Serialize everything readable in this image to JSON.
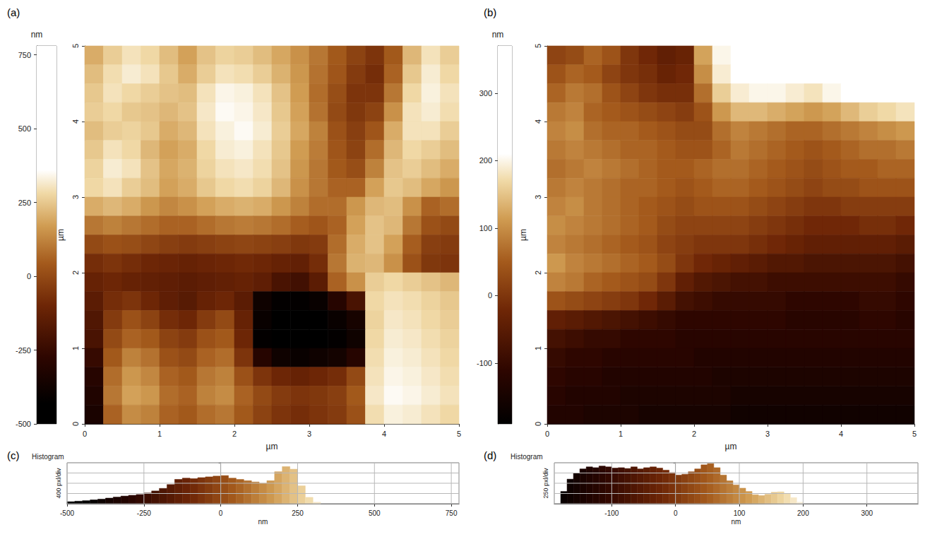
{
  "chart_data": [
    {
      "type": "heatmap",
      "title": "(a)",
      "x_label": "µm",
      "y_label": "µm",
      "xlim": [
        0,
        5
      ],
      "xticks": [
        0,
        1,
        2,
        3,
        4,
        5
      ],
      "ylim": [
        0,
        5
      ],
      "yticks": [
        0,
        1,
        2,
        3,
        4,
        5
      ],
      "colorbar_label": "nm",
      "colorbar_lim": [
        -500,
        780
      ],
      "colorbar_ticks": [
        -500,
        -250,
        0,
        250,
        500,
        750
      ],
      "colorbar_range": [
        -430,
        360
      ],
      "cells": [
        [
          200,
          260,
          300,
          280,
          230,
          180,
          240,
          270,
          260,
          230,
          190,
          150,
          100,
          40,
          -20,
          -60,
          40,
          220,
          300,
          260
        ],
        [
          230,
          290,
          320,
          300,
          250,
          200,
          260,
          300,
          290,
          260,
          210,
          160,
          90,
          30,
          -40,
          -80,
          60,
          250,
          320,
          280
        ],
        [
          250,
          300,
          280,
          260,
          240,
          230,
          300,
          340,
          330,
          300,
          240,
          170,
          80,
          10,
          -60,
          -60,
          100,
          280,
          330,
          300
        ],
        [
          260,
          280,
          250,
          240,
          220,
          240,
          310,
          350,
          340,
          310,
          250,
          180,
          90,
          0,
          -50,
          -20,
          150,
          300,
          320,
          290
        ],
        [
          230,
          260,
          270,
          250,
          200,
          220,
          300,
          330,
          350,
          320,
          260,
          190,
          120,
          20,
          -30,
          30,
          200,
          300,
          300,
          260
        ],
        [
          250,
          300,
          280,
          220,
          180,
          200,
          280,
          320,
          330,
          300,
          250,
          170,
          110,
          30,
          -20,
          80,
          220,
          280,
          260,
          230
        ],
        [
          270,
          320,
          300,
          240,
          190,
          210,
          270,
          300,
          310,
          290,
          240,
          160,
          100,
          40,
          10,
          120,
          240,
          260,
          230,
          200
        ],
        [
          280,
          300,
          260,
          230,
          180,
          200,
          250,
          280,
          290,
          270,
          220,
          150,
          100,
          60,
          60,
          180,
          250,
          230,
          190,
          160
        ],
        [
          200,
          220,
          200,
          160,
          130,
          150,
          180,
          200,
          210,
          200,
          160,
          120,
          80,
          80,
          160,
          220,
          230,
          150,
          60,
          80
        ],
        [
          100,
          120,
          100,
          80,
          60,
          60,
          80,
          100,
          110,
          100,
          80,
          50,
          30,
          60,
          180,
          240,
          220,
          100,
          20,
          0
        ],
        [
          0,
          20,
          10,
          -10,
          -30,
          -40,
          -30,
          -20,
          -10,
          -20,
          -30,
          -50,
          -40,
          80,
          200,
          240,
          180,
          50,
          -30,
          -40
        ],
        [
          -80,
          -60,
          -80,
          -100,
          -110,
          -120,
          -110,
          -100,
          -90,
          -100,
          -120,
          -130,
          -80,
          100,
          210,
          220,
          150,
          20,
          -50,
          -60
        ],
        [
          -120,
          -100,
          -120,
          -130,
          -140,
          -150,
          -140,
          -130,
          -120,
          -140,
          -200,
          -220,
          -150,
          60,
          150,
          260,
          280,
          260,
          240,
          220
        ],
        [
          -150,
          -80,
          -60,
          -100,
          -140,
          -160,
          -120,
          -100,
          -150,
          -380,
          -420,
          -420,
          -400,
          -300,
          -200,
          280,
          300,
          290,
          270,
          250
        ],
        [
          -180,
          -40,
          20,
          -20,
          -80,
          -100,
          -40,
          0,
          -120,
          -400,
          -450,
          -450,
          -430,
          -400,
          -350,
          270,
          310,
          300,
          280,
          260
        ],
        [
          -200,
          0,
          60,
          40,
          -20,
          -40,
          20,
          40,
          -100,
          -420,
          -460,
          -460,
          -440,
          -420,
          -380,
          280,
          320,
          310,
          290,
          270
        ],
        [
          -250,
          40,
          120,
          90,
          20,
          0,
          60,
          80,
          -60,
          -300,
          -380,
          -400,
          -380,
          -360,
          -300,
          290,
          330,
          320,
          300,
          280
        ],
        [
          -300,
          80,
          160,
          130,
          60,
          40,
          100,
          120,
          20,
          -60,
          -100,
          -120,
          -100,
          -80,
          0,
          300,
          340,
          330,
          310,
          290
        ],
        [
          -320,
          100,
          180,
          160,
          80,
          60,
          120,
          140,
          60,
          0,
          -40,
          -60,
          -50,
          -30,
          40,
          310,
          350,
          340,
          320,
          300
        ],
        [
          -340,
          60,
          140,
          120,
          60,
          40,
          80,
          100,
          40,
          -20,
          -60,
          -80,
          -60,
          -40,
          20,
          290,
          330,
          320,
          300,
          280
        ]
      ]
    },
    {
      "type": "heatmap",
      "title": "(b)",
      "x_label": "µm",
      "y_label": "µm",
      "xlim": [
        0,
        5
      ],
      "xticks": [
        0,
        1,
        2,
        3,
        4,
        5
      ],
      "ylim": [
        0,
        5
      ],
      "yticks": [
        0,
        1,
        2,
        3,
        4,
        5
      ],
      "colorbar_label": "nm",
      "colorbar_lim": [
        -190,
        370
      ],
      "colorbar_ticks": [
        -100,
        0,
        100,
        200,
        300
      ],
      "colorbar_range": [
        -190,
        210
      ],
      "cells": [
        [
          20,
          30,
          60,
          40,
          0,
          -20,
          -40,
          -30,
          120,
          200,
          230,
          240,
          250,
          260,
          280,
          300,
          320,
          330,
          340,
          350
        ],
        [
          40,
          60,
          50,
          20,
          0,
          -10,
          -30,
          -20,
          100,
          190,
          220,
          230,
          240,
          240,
          250,
          270,
          290,
          300,
          320,
          330
        ],
        [
          60,
          80,
          70,
          40,
          20,
          0,
          -10,
          -10,
          70,
          160,
          190,
          200,
          200,
          190,
          180,
          200,
          220,
          230,
          250,
          260
        ],
        [
          80,
          90,
          60,
          50,
          40,
          30,
          20,
          10,
          40,
          110,
          140,
          140,
          130,
          120,
          110,
          120,
          140,
          160,
          170,
          180
        ],
        [
          90,
          100,
          70,
          60,
          60,
          50,
          40,
          30,
          30,
          70,
          90,
          80,
          70,
          60,
          60,
          70,
          80,
          90,
          100,
          110
        ],
        [
          80,
          90,
          80,
          70,
          60,
          60,
          50,
          40,
          40,
          60,
          80,
          70,
          60,
          50,
          40,
          50,
          60,
          70,
          70,
          80
        ],
        [
          70,
          80,
          90,
          80,
          70,
          60,
          50,
          50,
          60,
          70,
          70,
          60,
          50,
          40,
          30,
          40,
          50,
          50,
          60,
          60
        ],
        [
          80,
          90,
          80,
          70,
          60,
          60,
          50,
          40,
          50,
          60,
          60,
          50,
          40,
          30,
          20,
          30,
          30,
          40,
          40,
          40
        ],
        [
          90,
          100,
          80,
          70,
          60,
          50,
          40,
          30,
          40,
          40,
          40,
          30,
          20,
          10,
          0,
          0,
          10,
          10,
          10,
          10
        ],
        [
          100,
          90,
          80,
          70,
          60,
          50,
          30,
          20,
          20,
          20,
          20,
          10,
          0,
          -10,
          -20,
          -20,
          -20,
          -10,
          -10,
          -20
        ],
        [
          90,
          80,
          70,
          60,
          50,
          40,
          20,
          10,
          0,
          0,
          0,
          -10,
          -20,
          -30,
          -40,
          -40,
          -40,
          -40,
          -40,
          -50
        ],
        [
          110,
          90,
          80,
          70,
          60,
          50,
          30,
          0,
          -20,
          -30,
          -40,
          -50,
          -60,
          -60,
          -70,
          -70,
          -70,
          -70,
          -70,
          -80
        ],
        [
          90,
          80,
          60,
          50,
          40,
          30,
          0,
          -40,
          -60,
          -70,
          -80,
          -80,
          -90,
          -90,
          -90,
          -90,
          -90,
          -90,
          -90,
          -100
        ],
        [
          40,
          30,
          20,
          10,
          0,
          -20,
          -50,
          -80,
          -90,
          -100,
          -100,
          -100,
          -100,
          -110,
          -110,
          -110,
          -110,
          -100,
          -100,
          -110
        ],
        [
          -40,
          -50,
          -60,
          -70,
          -80,
          -90,
          -100,
          -110,
          -110,
          -110,
          -110,
          -110,
          -110,
          -120,
          -120,
          -120,
          -120,
          -110,
          -110,
          -120
        ],
        [
          -80,
          -90,
          -100,
          -100,
          -110,
          -110,
          -110,
          -120,
          -120,
          -120,
          -120,
          -120,
          -120,
          -120,
          -120,
          -120,
          -120,
          -120,
          -120,
          -120
        ],
        [
          -100,
          -110,
          -110,
          -120,
          -120,
          -120,
          -120,
          -120,
          -130,
          -130,
          -130,
          -130,
          -130,
          -130,
          -130,
          -130,
          -130,
          -130,
          -130,
          -130
        ],
        [
          -110,
          -120,
          -120,
          -130,
          -130,
          -130,
          -130,
          -130,
          -130,
          -140,
          -140,
          -140,
          -140,
          -140,
          -140,
          -140,
          -140,
          -140,
          -140,
          -140
        ],
        [
          -120,
          -130,
          -130,
          -130,
          -140,
          -140,
          -140,
          -140,
          -140,
          -140,
          -150,
          -150,
          -150,
          -150,
          -150,
          -150,
          -150,
          -150,
          -150,
          -150
        ],
        [
          -130,
          -130,
          -140,
          -140,
          -140,
          -150,
          -150,
          -150,
          -150,
          -150,
          -160,
          -160,
          -160,
          -160,
          -160,
          -160,
          -160,
          -160,
          -160,
          -160
        ]
      ]
    },
    {
      "type": "histogram",
      "title": "(c)",
      "subtitle": "Histogram",
      "x_label": "nm",
      "y_label": "400 pxl/div",
      "xlim": [
        -500,
        775
      ],
      "xticks": [
        -500,
        -250,
        0,
        250,
        500,
        750
      ],
      "ylim": [
        0,
        1600
      ],
      "yticks": [
        0,
        400,
        800,
        1200,
        1600
      ],
      "grid": true,
      "tick_labels": "x",
      "bins": [
        -500,
        -475,
        -450,
        -425,
        -400,
        -375,
        -350,
        -325,
        -300,
        -275,
        -250,
        -225,
        -200,
        -175,
        -150,
        -125,
        -100,
        -75,
        -50,
        -25,
        0,
        25,
        50,
        75,
        100,
        125,
        150,
        175,
        200,
        225,
        250,
        275,
        300,
        325
      ],
      "counts": [
        80,
        100,
        120,
        150,
        180,
        220,
        260,
        300,
        330,
        360,
        420,
        500,
        600,
        750,
        950,
        1000,
        980,
        1020,
        1050,
        1080,
        1100,
        1000,
        950,
        900,
        850,
        800,
        900,
        1250,
        1450,
        1350,
        700,
        250,
        60
      ]
    },
    {
      "type": "histogram",
      "title": "(d)",
      "subtitle": "Histogram",
      "x_label": "nm",
      "y_label": "250 pxl/div",
      "xlim": [
        -190,
        380
      ],
      "xticks": [
        -100,
        0,
        100,
        200,
        300
      ],
      "ylim": [
        0,
        1000
      ],
      "yticks": [
        0,
        250,
        500,
        750,
        1000
      ],
      "grid": true,
      "tick_labels": "x",
      "bins": [
        -180,
        -170,
        -160,
        -150,
        -140,
        -130,
        -120,
        -110,
        -100,
        -90,
        -80,
        -70,
        -60,
        -50,
        -40,
        -30,
        -20,
        -10,
        0,
        10,
        20,
        30,
        40,
        50,
        60,
        70,
        80,
        90,
        100,
        110,
        120,
        130,
        140,
        150,
        160,
        170,
        180,
        190,
        200
      ],
      "counts": [
        300,
        600,
        750,
        850,
        900,
        880,
        920,
        900,
        870,
        880,
        860,
        900,
        850,
        880,
        900,
        870,
        820,
        760,
        700,
        720,
        780,
        850,
        950,
        980,
        880,
        700,
        560,
        460,
        380,
        300,
        220,
        200,
        230,
        280,
        290,
        250,
        150,
        40
      ]
    }
  ]
}
